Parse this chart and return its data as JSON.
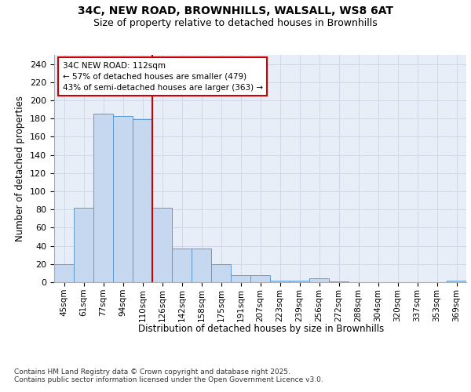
{
  "title_line1": "34C, NEW ROAD, BROWNHILLS, WALSALL, WS8 6AT",
  "title_line2": "Size of property relative to detached houses in Brownhills",
  "xlabel": "Distribution of detached houses by size in Brownhills",
  "ylabel": "Number of detached properties",
  "categories": [
    "45sqm",
    "61sqm",
    "77sqm",
    "94sqm",
    "110sqm",
    "126sqm",
    "142sqm",
    "158sqm",
    "175sqm",
    "191sqm",
    "207sqm",
    "223sqm",
    "239sqm",
    "256sqm",
    "272sqm",
    "288sqm",
    "304sqm",
    "320sqm",
    "337sqm",
    "353sqm",
    "369sqm"
  ],
  "values": [
    20,
    82,
    185,
    183,
    179,
    82,
    37,
    37,
    20,
    8,
    8,
    2,
    2,
    4,
    1,
    0,
    0,
    0,
    0,
    0,
    2
  ],
  "bar_color": "#c5d8f0",
  "bar_edge_color": "#5b9bd5",
  "grid_color": "#d0d8e8",
  "background_color": "#e8eef8",
  "vline_index": 4,
  "vline_color": "#cc0000",
  "annotation_text": "34C NEW ROAD: 112sqm\n← 57% of detached houses are smaller (479)\n43% of semi-detached houses are larger (363) →",
  "annotation_box_color": "#ffffff",
  "annotation_edge_color": "#cc0000",
  "footer_text": "Contains HM Land Registry data © Crown copyright and database right 2025.\nContains public sector information licensed under the Open Government Licence v3.0.",
  "ylim": [
    0,
    250
  ],
  "yticks": [
    0,
    20,
    40,
    60,
    80,
    100,
    120,
    140,
    160,
    180,
    200,
    220,
    240
  ]
}
